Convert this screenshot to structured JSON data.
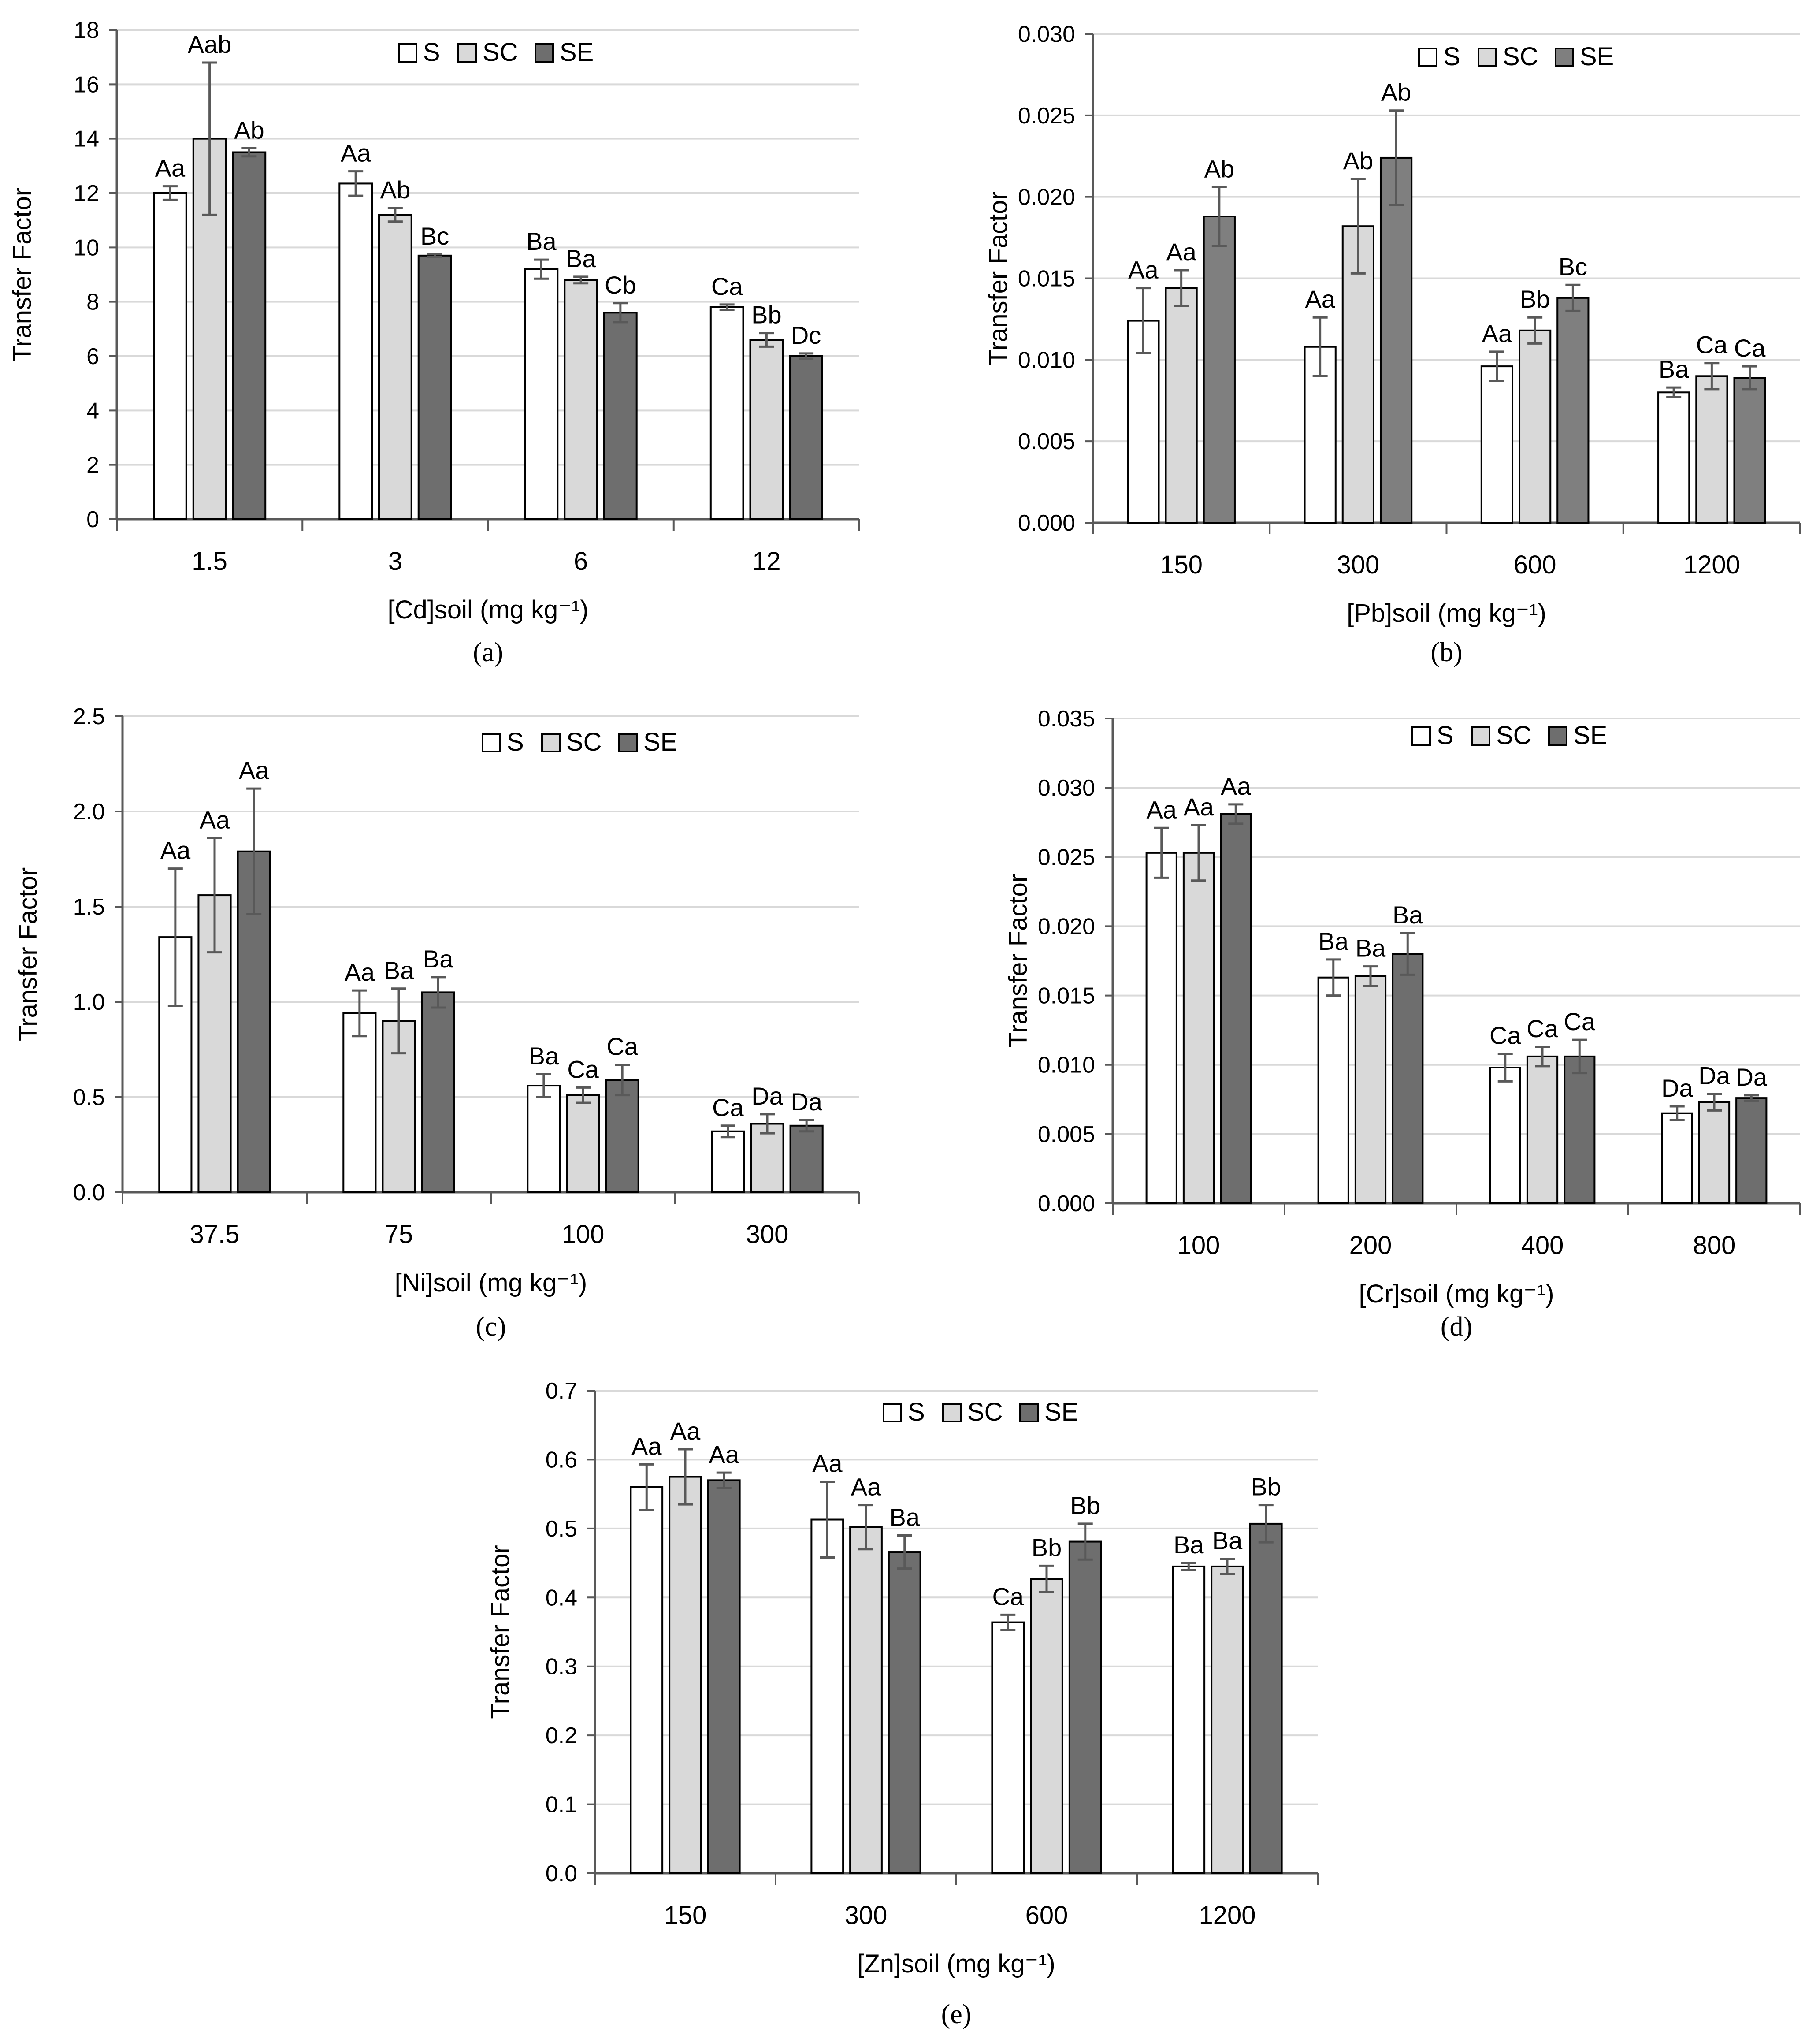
{
  "figure": {
    "series_names": [
      "S",
      "SC",
      "SE"
    ],
    "colors": {
      "S": "#ffffff",
      "SC": "#d9d9d9",
      "SE": "#6e6e6e",
      "SE_panel_b": "#7f7f7f",
      "axis": "#595959",
      "gridline": "#d9d9d9",
      "bar_edge": "#000000",
      "error_bar": "#595959",
      "text": "#000000"
    }
  },
  "chart_data": [
    {
      "panel": "(a)",
      "type": "bar",
      "title": "",
      "ylabel": "Transfer Factor",
      "xlabel": "[Cd]soil (mg kg⁻¹)",
      "categories": [
        "1.5",
        "3",
        "6",
        "12"
      ],
      "ylim": [
        0,
        18
      ],
      "ytick_values": [
        0,
        2,
        4,
        6,
        8,
        10,
        12,
        14,
        16,
        18
      ],
      "ytick_labels": [
        "0",
        "2",
        "4",
        "6",
        "8",
        "10",
        "12",
        "14",
        "16",
        "18"
      ],
      "grid": true,
      "legend": "top-center",
      "series": [
        {
          "name": "S",
          "values": [
            12.0,
            12.35,
            9.2,
            7.8
          ],
          "errors": [
            0.25,
            0.45,
            0.35,
            0.1
          ],
          "letters": [
            "Aa",
            "Aa",
            "Ba",
            "Ca"
          ]
        },
        {
          "name": "SC",
          "values": [
            14.0,
            11.2,
            8.8,
            6.6
          ],
          "errors": [
            2.8,
            0.25,
            0.12,
            0.25
          ],
          "letters": [
            "Aab",
            "Ab",
            "Ba",
            "Bb"
          ]
        },
        {
          "name": "SE",
          "values": [
            13.5,
            9.7,
            7.6,
            6.0
          ],
          "errors": [
            0.15,
            0.05,
            0.35,
            0.1
          ],
          "letters": [
            "Ab",
            "Bc",
            "Cb",
            "Dc"
          ]
        }
      ]
    },
    {
      "panel": "(b)",
      "type": "bar",
      "title": "",
      "ylabel": "Transfer Factor",
      "xlabel": "[Pb]soil (mg kg⁻¹)",
      "categories": [
        "150",
        "300",
        "600",
        "1200"
      ],
      "ylim": [
        0,
        0.03
      ],
      "ytick_values": [
        0,
        0.005,
        0.01,
        0.015,
        0.02,
        0.025,
        0.03
      ],
      "ytick_labels": [
        "0.000",
        "0.005",
        "0.010",
        "0.015",
        "0.020",
        "0.025",
        "0.030"
      ],
      "grid": true,
      "legend": "top-center",
      "series": [
        {
          "name": "S",
          "values": [
            0.0124,
            0.0108,
            0.0096,
            0.008
          ],
          "errors": [
            0.002,
            0.0018,
            0.0009,
            0.0003
          ],
          "letters": [
            "Aa",
            "Aa",
            "Aa",
            "Ba"
          ]
        },
        {
          "name": "SC",
          "values": [
            0.0144,
            0.0182,
            0.0118,
            0.009
          ],
          "errors": [
            0.0011,
            0.0029,
            0.0008,
            0.0008
          ],
          "letters": [
            "Aa",
            "Ab",
            "Bb",
            "Ca"
          ]
        },
        {
          "name": "SE",
          "values": [
            0.0188,
            0.0224,
            0.0138,
            0.0089
          ],
          "errors": [
            0.0018,
            0.0029,
            0.0008,
            0.0007
          ],
          "letters": [
            "Ab",
            "Ab",
            "Bc",
            "Ca"
          ]
        }
      ]
    },
    {
      "panel": "(c)",
      "type": "bar",
      "title": "",
      "ylabel": "Transfer Factor",
      "xlabel": "[Ni]soil (mg kg⁻¹)",
      "categories": [
        "37.5",
        "75",
        "100",
        "300"
      ],
      "ylim": [
        0,
        2.5
      ],
      "ytick_values": [
        0,
        0.5,
        1.0,
        1.5,
        2.0,
        2.5
      ],
      "ytick_labels": [
        "0.0",
        "0.5",
        "1.0",
        "1.5",
        "2.0",
        "2.5"
      ],
      "grid": true,
      "legend": "top-center",
      "series": [
        {
          "name": "S",
          "values": [
            1.34,
            0.94,
            0.56,
            0.32
          ],
          "errors": [
            0.36,
            0.12,
            0.06,
            0.03
          ],
          "letters": [
            "Aa",
            "Aa",
            "Ba",
            "Ca"
          ]
        },
        {
          "name": "SC",
          "values": [
            1.56,
            0.9,
            0.51,
            0.36
          ],
          "errors": [
            0.3,
            0.17,
            0.04,
            0.05
          ],
          "letters": [
            "Aa",
            "Ba",
            "Ca",
            "Da"
          ]
        },
        {
          "name": "SE",
          "values": [
            1.79,
            1.05,
            0.59,
            0.35
          ],
          "errors": [
            0.33,
            0.08,
            0.08,
            0.03
          ],
          "letters": [
            "Aa",
            "Ba",
            "Ca",
            "Da"
          ]
        }
      ]
    },
    {
      "panel": "(d)",
      "type": "bar",
      "title": "",
      "ylabel": "Transfer Factor",
      "xlabel": "[Cr]soil (mg kg⁻¹)",
      "categories": [
        "100",
        "200",
        "400",
        "800"
      ],
      "ylim": [
        0,
        0.035
      ],
      "ytick_values": [
        0,
        0.005,
        0.01,
        0.015,
        0.02,
        0.025,
        0.03,
        0.035
      ],
      "ytick_labels": [
        "0.000",
        "0.005",
        "0.010",
        "0.015",
        "0.020",
        "0.025",
        "0.030",
        "0.035"
      ],
      "grid": true,
      "legend": "top-center",
      "series": [
        {
          "name": "S",
          "values": [
            0.0253,
            0.0163,
            0.0098,
            0.0065
          ],
          "errors": [
            0.0018,
            0.0013,
            0.001,
            0.0005
          ],
          "letters": [
            "Aa",
            "Ba",
            "Ca",
            "Da"
          ]
        },
        {
          "name": "SC",
          "values": [
            0.0253,
            0.0164,
            0.0106,
            0.0073
          ],
          "errors": [
            0.002,
            0.0007,
            0.0007,
            0.0006
          ],
          "letters": [
            "Aa",
            "Ba",
            "Ca",
            "Da"
          ]
        },
        {
          "name": "SE",
          "values": [
            0.0281,
            0.018,
            0.0106,
            0.0076
          ],
          "errors": [
            0.0007,
            0.0015,
            0.0012,
            0.0002
          ],
          "letters": [
            "Aa",
            "Ba",
            "Ca",
            "Da"
          ]
        }
      ]
    },
    {
      "panel": "(e)",
      "type": "bar",
      "title": "",
      "ylabel": "Transfer Factor",
      "xlabel": "[Zn]soil (mg kg⁻¹)",
      "categories": [
        "150",
        "300",
        "600",
        "1200"
      ],
      "ylim": [
        0,
        0.7
      ],
      "ytick_values": [
        0,
        0.1,
        0.2,
        0.3,
        0.4,
        0.5,
        0.6,
        0.7
      ],
      "ytick_labels": [
        "0.0",
        "0.1",
        "0.2",
        "0.3",
        "0.4",
        "0.5",
        "0.6",
        "0.7"
      ],
      "grid": true,
      "legend": "top-center",
      "series": [
        {
          "name": "S",
          "values": [
            0.56,
            0.513,
            0.364,
            0.445
          ],
          "errors": [
            0.033,
            0.055,
            0.011,
            0.005
          ],
          "letters": [
            "Aa",
            "Aa",
            "Ca",
            "Ba"
          ]
        },
        {
          "name": "SC",
          "values": [
            0.575,
            0.502,
            0.427,
            0.445
          ],
          "errors": [
            0.04,
            0.032,
            0.019,
            0.011
          ],
          "letters": [
            "Aa",
            "Aa",
            "Bb",
            "Ba"
          ]
        },
        {
          "name": "SE",
          "values": [
            0.57,
            0.466,
            0.481,
            0.507
          ],
          "errors": [
            0.011,
            0.024,
            0.026,
            0.027
          ],
          "letters": [
            "Aa",
            "Ba",
            "Bb",
            "Bb"
          ]
        }
      ]
    }
  ]
}
